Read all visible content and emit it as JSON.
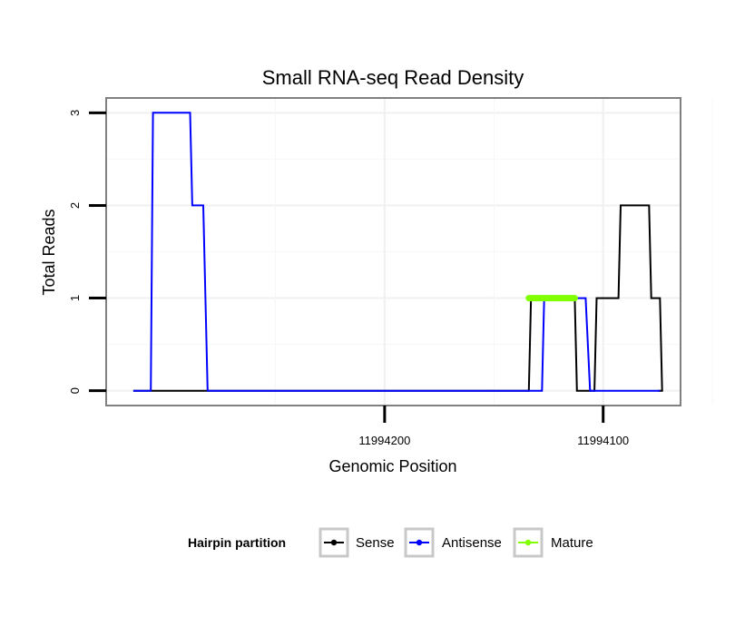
{
  "chart_data": {
    "type": "line",
    "title": "Small RNA-seq Read Density",
    "xlabel": "Genomic Position",
    "ylabel": "Total Reads",
    "x_reversed": true,
    "xlim": [
      11994327,
      11994065
    ],
    "ylim": [
      -0.15,
      3.15
    ],
    "xticks": [
      {
        "value": 11994200,
        "label": "11994200"
      },
      {
        "value": 11994100,
        "label": "11994100"
      }
    ],
    "yticks": [
      {
        "value": 0,
        "label": "0"
      },
      {
        "value": 1,
        "label": "1"
      },
      {
        "value": 2,
        "label": "2"
      },
      {
        "value": 3,
        "label": "3"
      }
    ],
    "grid": true,
    "legend": {
      "title": "Hairpin partition",
      "position": "bottom",
      "entries": [
        {
          "label": "Sense",
          "color": "#000000"
        },
        {
          "label": "Antisense",
          "color": "#0000ff"
        },
        {
          "label": "Mature",
          "color": "#7fff00"
        }
      ]
    },
    "series": [
      {
        "name": "Sense",
        "color": "#000000",
        "width": 2,
        "points": [
          [
            11994315,
            0
          ],
          [
            11994134,
            0
          ],
          [
            11994133,
            1
          ],
          [
            11994113,
            1
          ],
          [
            11994112,
            0
          ],
          [
            11994104,
            0
          ],
          [
            11994103,
            1
          ],
          [
            11994093,
            1
          ],
          [
            11994092,
            2
          ],
          [
            11994079,
            2
          ],
          [
            11994078,
            1
          ],
          [
            11994074,
            1
          ],
          [
            11994073,
            0
          ],
          [
            11994073,
            0
          ],
          [
            11994075,
            0
          ]
        ]
      },
      {
        "name": "Antisense",
        "color": "#0000ff",
        "width": 2,
        "points": [
          [
            11994315,
            0
          ],
          [
            11994307,
            0
          ],
          [
            11994306,
            3
          ],
          [
            11994289,
            3
          ],
          [
            11994288,
            2
          ],
          [
            11994283,
            2
          ],
          [
            11994281,
            0
          ],
          [
            11994128,
            0
          ],
          [
            11994127,
            1
          ],
          [
            11994108,
            1
          ],
          [
            11994106,
            0
          ],
          [
            11994074,
            0
          ]
        ]
      },
      {
        "name": "Mature",
        "color": "#7fff00",
        "width": 7,
        "points": [
          [
            11994134,
            1
          ],
          [
            11994113,
            1
          ]
        ]
      }
    ]
  }
}
